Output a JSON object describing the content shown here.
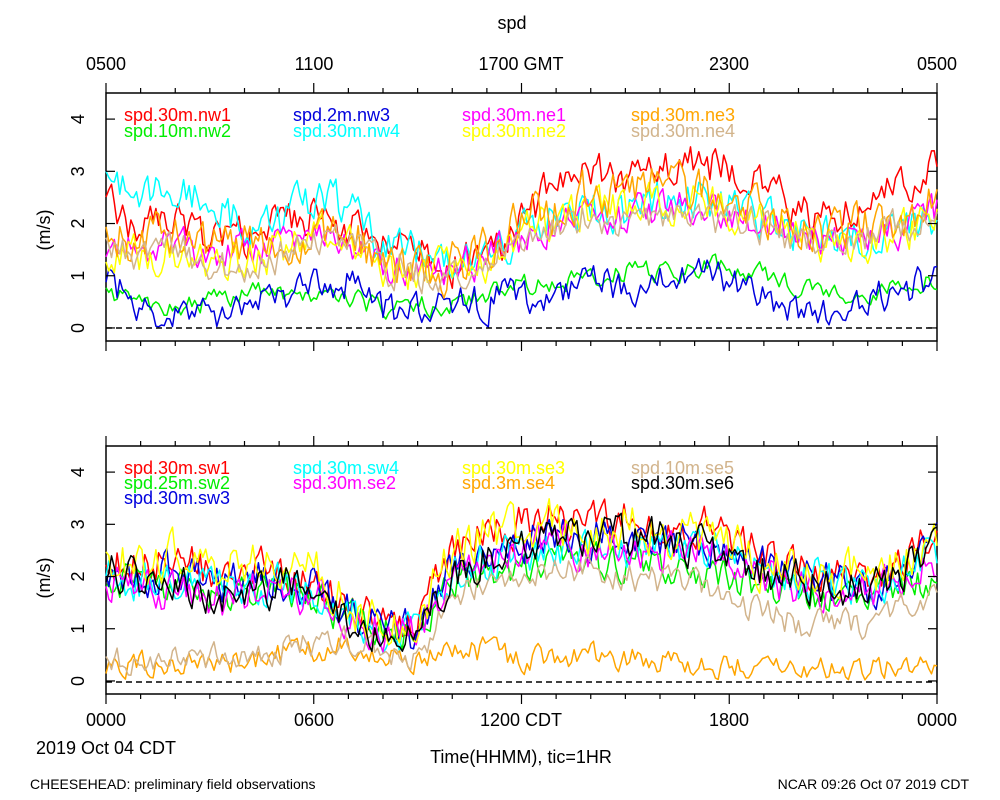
{
  "chart_data": [
    {
      "type": "line",
      "title": "spd",
      "ylabel": "(m/s)",
      "ylim": [
        -0.25,
        4.5
      ],
      "yticks": [
        "0",
        "1",
        "2",
        "3",
        "4"
      ],
      "xlim_hours": [
        0,
        24
      ],
      "top_axis_label": "GMT",
      "top_ticks": [
        "0500",
        "1100",
        "1700 GMT",
        "2300",
        "0500"
      ],
      "series": [
        {
          "name": "spd.30m.nw1",
          "color": "#ff0000",
          "anchors": [
            2.4,
            1.9,
            2.0,
            1.6,
            1.7,
            2.0,
            2.2,
            1.9,
            1.6,
            1.4,
            1.2,
            1.3,
            2.0,
            2.8,
            3.0,
            2.9,
            3.1,
            3.2,
            3.0,
            2.8,
            2.2,
            2.0,
            2.5,
            2.7,
            3.4
          ],
          "noise": 0.35
        },
        {
          "name": "spd.10m.nw2",
          "color": "#00ee00",
          "anchors": [
            0.7,
            0.5,
            0.4,
            0.5,
            0.7,
            0.7,
            0.6,
            0.5,
            0.4,
            0.4,
            0.5,
            0.6,
            0.8,
            0.9,
            1.0,
            1.1,
            1.0,
            1.1,
            1.2,
            1.0,
            0.8,
            0.7,
            0.6,
            0.8,
            0.9
          ],
          "noise": 0.18
        },
        {
          "name": "spd.2m.nw3",
          "color": "#0000dd",
          "anchors": [
            1.0,
            0.3,
            0.2,
            0.3,
            0.4,
            0.5,
            0.8,
            0.9,
            0.3,
            0.3,
            0.4,
            0.5,
            0.6,
            0.7,
            0.9,
            0.8,
            0.9,
            1.0,
            0.9,
            0.7,
            0.2,
            0.3,
            0.5,
            0.7,
            1.0
          ],
          "noise": 0.3
        },
        {
          "name": "spd.30m.nw4",
          "color": "#00ffff",
          "anchors": [
            3.0,
            2.6,
            2.8,
            2.3,
            2.0,
            2.0,
            2.5,
            2.3,
            1.5,
            1.4,
            1.3,
            1.4,
            1.8,
            2.1,
            2.3,
            2.2,
            2.4,
            2.5,
            2.3,
            2.1,
            1.8,
            1.7,
            1.7,
            1.9,
            2.1
          ],
          "noise": 0.35
        },
        {
          "name": "spd.30m.ne1",
          "color": "#ff00ff",
          "anchors": [
            1.6,
            1.5,
            1.6,
            1.4,
            1.5,
            1.6,
            1.8,
            1.7,
            1.2,
            1.0,
            1.1,
            1.3,
            1.7,
            2.0,
            2.2,
            2.1,
            2.3,
            2.3,
            2.1,
            2.0,
            1.8,
            1.7,
            1.7,
            1.9,
            2.2
          ],
          "noise": 0.3
        },
        {
          "name": "spd.30m.ne2",
          "color": "#ffff00",
          "anchors": [
            1.6,
            1.4,
            1.5,
            1.2,
            1.3,
            1.5,
            2.0,
            1.8,
            1.1,
            1.0,
            1.1,
            1.3,
            1.8,
            2.0,
            2.3,
            2.2,
            2.4,
            2.4,
            2.2,
            2.0,
            1.7,
            1.6,
            1.6,
            1.8,
            2.1
          ],
          "noise": 0.35
        },
        {
          "name": "spd.30m.ne3",
          "color": "#ffa500",
          "anchors": [
            1.8,
            1.7,
            1.8,
            1.5,
            1.6,
            1.7,
            1.9,
            1.8,
            1.3,
            1.1,
            1.2,
            1.5,
            2.0,
            2.3,
            2.6,
            2.5,
            2.7,
            2.6,
            2.4,
            2.2,
            1.9,
            1.8,
            1.9,
            2.1,
            2.4
          ],
          "noise": 0.4
        },
        {
          "name": "spd.30m.ne4",
          "color": "#d2b48c",
          "anchors": [
            1.5,
            1.4,
            1.5,
            1.2,
            1.2,
            1.4,
            1.6,
            1.6,
            1.2,
            1.0,
            1.1,
            1.3,
            1.7,
            1.9,
            2.1,
            2.0,
            2.2,
            2.1,
            2.0,
            1.9,
            1.7,
            1.6,
            1.7,
            1.9,
            2.1
          ],
          "noise": 0.3
        }
      ]
    },
    {
      "type": "line",
      "ylabel": "(m/s)",
      "ylim": [
        -0.25,
        4.5
      ],
      "yticks": [
        "0",
        "1",
        "2",
        "3",
        "4"
      ],
      "xlim_hours": [
        0,
        24
      ],
      "xlabel": "Time(HHMM), tic=1HR",
      "bottom_ticks": [
        "0000",
        "0600",
        "1200 CDT",
        "1800",
        "0000"
      ],
      "date_label": "2019 Oct 04 CDT",
      "series": [
        {
          "name": "spd.30m.sw1",
          "color": "#ff0000",
          "anchors": [
            2.4,
            2.2,
            2.3,
            2.1,
            2.2,
            2.1,
            2.0,
            1.4,
            1.1,
            1.0,
            2.5,
            2.8,
            3.0,
            3.1,
            3.0,
            3.2,
            3.1,
            3.0,
            2.8,
            2.4,
            2.2,
            2.1,
            2.0,
            2.3,
            3.0
          ],
          "noise": 0.35
        },
        {
          "name": "spd.25m.sw2",
          "color": "#00ee00",
          "anchors": [
            2.0,
            1.9,
            1.8,
            1.7,
            1.7,
            1.8,
            1.6,
            1.2,
            1.0,
            0.9,
            1.8,
            2.0,
            2.2,
            2.3,
            2.2,
            2.3,
            2.2,
            2.1,
            2.0,
            1.8,
            1.7,
            1.6,
            1.6,
            1.8,
            2.0
          ],
          "noise": 0.3
        },
        {
          "name": "spd.30m.sw3",
          "color": "#0000dd",
          "anchors": [
            2.2,
            2.0,
            2.1,
            1.9,
            2.0,
            2.0,
            1.8,
            1.3,
            1.0,
            0.9,
            2.2,
            2.5,
            2.7,
            2.8,
            2.7,
            2.8,
            2.7,
            2.7,
            2.5,
            2.2,
            2.0,
            1.9,
            1.8,
            2.1,
            2.6
          ],
          "noise": 0.35
        },
        {
          "name": "spd.30m.sw4",
          "color": "#00ffff",
          "anchors": [
            2.0,
            1.9,
            1.8,
            1.7,
            1.7,
            1.8,
            1.6,
            1.3,
            1.0,
            1.0,
            2.1,
            2.3,
            2.5,
            2.6,
            2.5,
            2.6,
            2.6,
            2.5,
            2.4,
            2.1,
            2.0,
            1.9,
            1.8,
            2.1,
            2.5
          ],
          "noise": 0.35
        },
        {
          "name": "spd.30m.se2",
          "color": "#ff00ff",
          "anchors": [
            1.8,
            1.6,
            1.7,
            1.5,
            1.6,
            1.7,
            1.6,
            1.2,
            1.0,
            0.9,
            2.0,
            2.3,
            2.5,
            2.6,
            2.5,
            2.6,
            2.5,
            2.4,
            2.3,
            2.0,
            1.8,
            1.7,
            1.7,
            1.9,
            2.3
          ],
          "noise": 0.35
        },
        {
          "name": "spd.30m.se3",
          "color": "#ffff00",
          "anchors": [
            2.3,
            2.2,
            2.4,
            2.1,
            2.2,
            2.2,
            2.1,
            1.5,
            1.1,
            1.2,
            2.5,
            2.8,
            2.9,
            3.0,
            2.9,
            3.0,
            2.9,
            2.8,
            2.6,
            2.3,
            2.1,
            2.0,
            2.0,
            2.3,
            2.7
          ],
          "noise": 0.4
        },
        {
          "name": "spd.3m.se4",
          "color": "#ffa500",
          "anchors": [
            0.2,
            0.3,
            0.3,
            0.4,
            0.4,
            0.5,
            0.6,
            0.7,
            0.5,
            0.4,
            0.5,
            0.6,
            0.4,
            0.4,
            0.5,
            0.5,
            0.4,
            0.3,
            0.3,
            0.3,
            0.2,
            0.2,
            0.2,
            0.3,
            0.3
          ],
          "noise": 0.22
        },
        {
          "name": "spd.10m.se5",
          "color": "#d2b48c",
          "anchors": [
            0.4,
            0.3,
            0.4,
            0.5,
            0.5,
            0.6,
            0.7,
            0.8,
            0.6,
            0.5,
            1.6,
            2.0,
            2.1,
            2.2,
            2.1,
            2.0,
            1.9,
            1.8,
            1.6,
            1.3,
            1.1,
            1.0,
            1.1,
            1.4,
            1.7
          ],
          "noise": 0.25
        },
        {
          "name": "spd.30m.se6",
          "color": "#000000",
          "anchors": [
            2.1,
            1.9,
            1.9,
            1.7,
            1.7,
            1.8,
            1.9,
            1.3,
            1.0,
            0.8,
            2.0,
            2.4,
            2.6,
            2.8,
            2.7,
            2.8,
            2.7,
            2.6,
            2.4,
            2.1,
            2.0,
            1.8,
            1.7,
            2.0,
            2.5
          ],
          "noise": 0.35
        }
      ]
    }
  ],
  "footer": {
    "left": "CHEESEHEAD: preliminary field observations",
    "right": "NCAR 09:26 Oct 07 2019 CDT"
  }
}
